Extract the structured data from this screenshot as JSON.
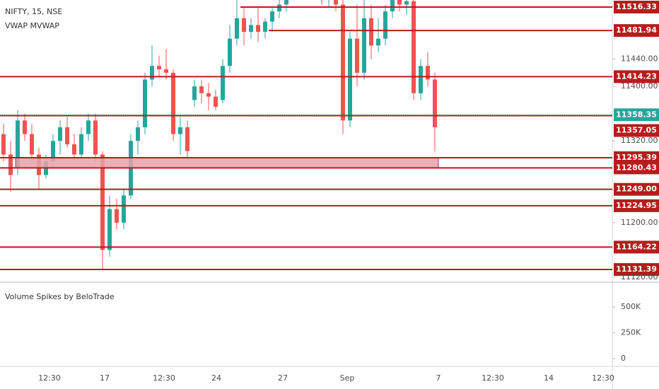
{
  "chart_data": {
    "type": "candlestick",
    "title": "NIFTY, 15, NSE",
    "indicator": "VWAP MVWAP",
    "up_color": "#26a69a",
    "down_color": "#ef5350",
    "level_color": "#b71c1c",
    "current_color": "#26a69a",
    "zone_color": "#e8a2a8",
    "ylim": [
      11113.8,
      11526.7
    ],
    "yticks": [
      {
        "value": 11440,
        "label": "11440.00"
      },
      {
        "value": 11400,
        "label": "11400.00"
      },
      {
        "value": 11320,
        "label": "11320.00"
      },
      {
        "value": 11200,
        "label": "11200.00"
      },
      {
        "value": 11120,
        "label": "11120.00"
      }
    ],
    "levels": [
      11516.33,
      11481.94,
      11414.23,
      11357.05,
      11295.39,
      11280.43,
      {
        "value": 11249,
        "label": "11249.00"
      },
      11224.95,
      11164.22,
      11131.39
    ],
    "current_price": 11358.35,
    "candles": {
      "open": [
        11330,
        11300,
        11280,
        11350,
        11330,
        11300,
        11270,
        11290,
        11320,
        11340,
        11315,
        11300,
        11330,
        11350,
        11300,
        11160,
        11220,
        11200,
        11240,
        11320,
        11340,
        11410,
        11430,
        11425,
        11420,
        11330,
        11340,
        11380,
        11400,
        11390,
        11385,
        11380,
        11430,
        11470,
        11500,
        11480,
        11490,
        11480,
        11495,
        11510,
        11520,
        11540,
        11550,
        11545,
        11560,
        11540,
        11530,
        11535,
        11520,
        11350,
        11470,
        11420,
        11500,
        11460,
        11470,
        11510,
        11530,
        11520,
        11525,
        11390,
        11430,
        11410
      ],
      "high": [
        11345,
        11320,
        11365,
        11360,
        11345,
        11310,
        11300,
        11330,
        11350,
        11355,
        11330,
        11340,
        11360,
        11360,
        11305,
        11240,
        11235,
        11250,
        11330,
        11350,
        11420,
        11460,
        11445,
        11455,
        11425,
        11355,
        11350,
        11410,
        11410,
        11405,
        11395,
        11440,
        11490,
        11530,
        11515,
        11500,
        11515,
        11500,
        11515,
        11530,
        11555,
        11565,
        11560,
        11575,
        11570,
        11550,
        11545,
        11540,
        11530,
        11480,
        11520,
        11530,
        11520,
        11500,
        11520,
        11540,
        11545,
        11540,
        11530,
        11440,
        11450,
        11420
      ],
      "low": [
        11290,
        11245,
        11270,
        11320,
        11290,
        11250,
        11265,
        11280,
        11300,
        11310,
        11290,
        11295,
        11320,
        11290,
        11130,
        11150,
        11190,
        11190,
        11235,
        11300,
        11330,
        11400,
        11415,
        11410,
        11320,
        11300,
        11295,
        11370,
        11375,
        11365,
        11365,
        11375,
        11420,
        11460,
        11460,
        11470,
        11465,
        11470,
        11480,
        11500,
        11510,
        11530,
        11535,
        11530,
        11530,
        11520,
        11515,
        11510,
        11330,
        11340,
        11400,
        11410,
        11440,
        11450,
        11460,
        11500,
        11510,
        11505,
        11380,
        11380,
        11400,
        11305
      ],
      "close": [
        11300,
        11270,
        11350,
        11330,
        11300,
        11270,
        11290,
        11320,
        11340,
        11315,
        11300,
        11330,
        11350,
        11300,
        11160,
        11220,
        11200,
        11240,
        11320,
        11340,
        11410,
        11430,
        11425,
        11420,
        11330,
        11340,
        11305,
        11400,
        11390,
        11385,
        11370,
        11430,
        11470,
        11500,
        11480,
        11490,
        11480,
        11495,
        11510,
        11520,
        11540,
        11550,
        11545,
        11560,
        11540,
        11530,
        11535,
        11520,
        11350,
        11470,
        11420,
        11500,
        11460,
        11470,
        11510,
        11530,
        11520,
        11525,
        11390,
        11430,
        11410,
        11340
      ]
    },
    "x_labels": [
      "12:30",
      "17",
      "12:30",
      "24",
      "27",
      "Sep",
      "7",
      "12:30",
      "14",
      "12:30"
    ],
    "volume": {
      "title": "Volume Spikes by BeloTrade",
      "ylim": [
        -75000,
        733000
      ],
      "yticks": [
        {
          "value": 500000,
          "label": "500K"
        },
        {
          "value": 250000,
          "label": "250K"
        },
        0
      ]
    }
  }
}
